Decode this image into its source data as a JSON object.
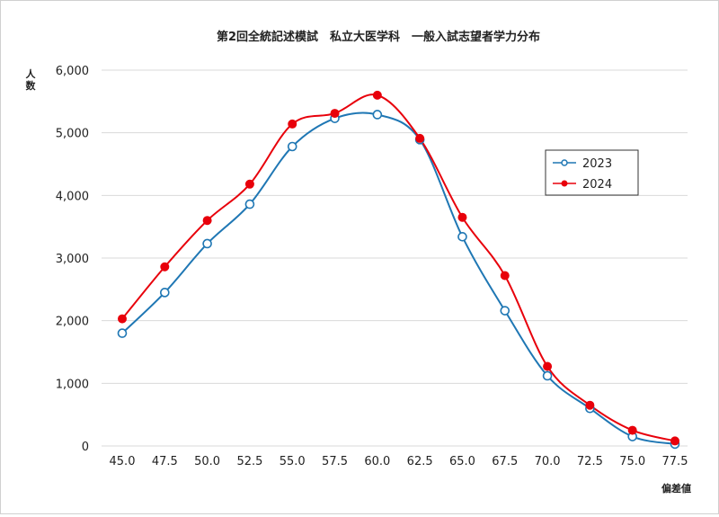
{
  "chart_data": {
    "type": "line",
    "title": "第2回全統記述模試　私立大医学科　一般入試志望者学力分布",
    "xlabel": "偏差値",
    "ylabel": "人数",
    "x": [
      "45.0",
      "47.5",
      "50.0",
      "52.5",
      "55.0",
      "57.5",
      "60.0",
      "62.5",
      "65.0",
      "67.5",
      "70.0",
      "72.5",
      "75.0",
      "77.5"
    ],
    "ylim": [
      0,
      6000
    ],
    "yticks": [
      "0",
      "1,000",
      "2,000",
      "3,000",
      "4,000",
      "5,000",
      "6,000"
    ],
    "ytick_values": [
      0,
      1000,
      2000,
      3000,
      4000,
      5000,
      6000
    ],
    "grid": true,
    "legend_position": "right",
    "series": [
      {
        "name": "2023",
        "color": "#1f77b4",
        "marker": "open-circle",
        "values": [
          1800,
          2450,
          3230,
          3860,
          4780,
          5230,
          5290,
          4890,
          3340,
          2160,
          1120,
          600,
          150,
          30
        ]
      },
      {
        "name": "2024",
        "color": "#e8000b",
        "marker": "filled-circle",
        "values": [
          2030,
          2860,
          3600,
          4180,
          5140,
          5310,
          5600,
          4910,
          3650,
          2720,
          1270,
          650,
          250,
          80
        ]
      }
    ]
  }
}
